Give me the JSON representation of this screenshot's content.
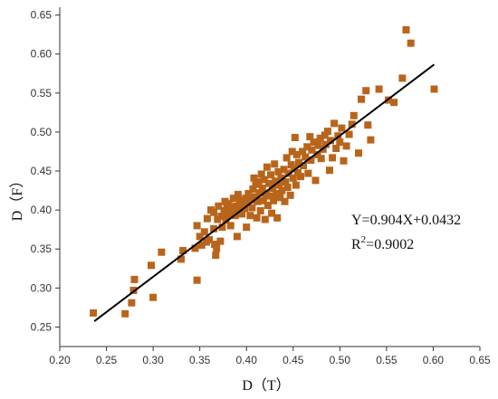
{
  "chart_data": {
    "type": "scatter",
    "xlabel": "D（T）",
    "ylabel": "D（F）",
    "xlim": [
      0.2,
      0.65
    ],
    "ylim": [
      0.225,
      0.66
    ],
    "x_ticks": [
      "0.20",
      "0.25",
      "0.30",
      "0.35",
      "0.40",
      "0.45",
      "0.50",
      "0.55",
      "0.60",
      "0.65"
    ],
    "y_ticks": [
      "0.25",
      "0.30",
      "0.35",
      "0.40",
      "0.45",
      "0.50",
      "0.55",
      "0.60",
      "0.65"
    ],
    "grid": false,
    "marker_color": "#B8651B",
    "line_color": "#000000",
    "annotations": {
      "equation": "Y=0.904X+0.0432",
      "r2_prefix": "R",
      "r2_exp": "2",
      "r2_value": "=0.9002"
    },
    "fit_line": {
      "slope": 0.904,
      "intercept": 0.0432,
      "x_range": [
        0.237,
        0.601
      ]
    },
    "points": [
      [
        0.236,
        0.268
      ],
      [
        0.27,
        0.267
      ],
      [
        0.277,
        0.281
      ],
      [
        0.279,
        0.297
      ],
      [
        0.28,
        0.311
      ],
      [
        0.298,
        0.329
      ],
      [
        0.3,
        0.288
      ],
      [
        0.309,
        0.346
      ],
      [
        0.33,
        0.337
      ],
      [
        0.332,
        0.348
      ],
      [
        0.345,
        0.351
      ],
      [
        0.347,
        0.31
      ],
      [
        0.347,
        0.38
      ],
      [
        0.35,
        0.366
      ],
      [
        0.352,
        0.355
      ],
      [
        0.355,
        0.372
      ],
      [
        0.357,
        0.359
      ],
      [
        0.358,
        0.389
      ],
      [
        0.36,
        0.362
      ],
      [
        0.362,
        0.4
      ],
      [
        0.365,
        0.376
      ],
      [
        0.365,
        0.397
      ],
      [
        0.366,
        0.356
      ],
      [
        0.367,
        0.342
      ],
      [
        0.368,
        0.351
      ],
      [
        0.369,
        0.388
      ],
      [
        0.37,
        0.405
      ],
      [
        0.372,
        0.36
      ],
      [
        0.373,
        0.392
      ],
      [
        0.374,
        0.378
      ],
      [
        0.376,
        0.399
      ],
      [
        0.377,
        0.411
      ],
      [
        0.378,
        0.387
      ],
      [
        0.379,
        0.402
      ],
      [
        0.38,
        0.395
      ],
      [
        0.381,
        0.408
      ],
      [
        0.383,
        0.38
      ],
      [
        0.384,
        0.403
      ],
      [
        0.385,
        0.396
      ],
      [
        0.386,
        0.415
      ],
      [
        0.388,
        0.393
      ],
      [
        0.389,
        0.405
      ],
      [
        0.39,
        0.366
      ],
      [
        0.391,
        0.42
      ],
      [
        0.392,
        0.4
      ],
      [
        0.393,
        0.412
      ],
      [
        0.395,
        0.395
      ],
      [
        0.396,
        0.407
      ],
      [
        0.398,
        0.402
      ],
      [
        0.399,
        0.415
      ],
      [
        0.4,
        0.378
      ],
      [
        0.401,
        0.409
      ],
      [
        0.402,
        0.421
      ],
      [
        0.404,
        0.393
      ],
      [
        0.405,
        0.413
      ],
      [
        0.406,
        0.403
      ],
      [
        0.407,
        0.427
      ],
      [
        0.408,
        0.441
      ],
      [
        0.409,
        0.417
      ],
      [
        0.41,
        0.433
      ],
      [
        0.411,
        0.39
      ],
      [
        0.412,
        0.411
      ],
      [
        0.413,
        0.436
      ],
      [
        0.414,
        0.422
      ],
      [
        0.415,
        0.399
      ],
      [
        0.416,
        0.446
      ],
      [
        0.417,
        0.428
      ],
      [
        0.418,
        0.412
      ],
      [
        0.419,
        0.439
      ],
      [
        0.42,
        0.388
      ],
      [
        0.421,
        0.421
      ],
      [
        0.422,
        0.455
      ],
      [
        0.423,
        0.406
      ],
      [
        0.424,
        0.434
      ],
      [
        0.425,
        0.418
      ],
      [
        0.426,
        0.445
      ],
      [
        0.427,
        0.396
      ],
      [
        0.428,
        0.428
      ],
      [
        0.429,
        0.412
      ],
      [
        0.43,
        0.459
      ],
      [
        0.431,
        0.437
      ],
      [
        0.432,
        0.421
      ],
      [
        0.433,
        0.39
      ],
      [
        0.434,
        0.449
      ],
      [
        0.435,
        0.432
      ],
      [
        0.436,
        0.416
      ],
      [
        0.437,
        0.441
      ],
      [
        0.438,
        0.425
      ],
      [
        0.44,
        0.452
      ],
      [
        0.441,
        0.411
      ],
      [
        0.442,
        0.436
      ],
      [
        0.443,
        0.467
      ],
      [
        0.444,
        0.429
      ],
      [
        0.445,
        0.447
      ],
      [
        0.447,
        0.419
      ],
      [
        0.448,
        0.458
      ],
      [
        0.449,
        0.475
      ],
      [
        0.45,
        0.441
      ],
      [
        0.451,
        0.453
      ],
      [
        0.452,
        0.493
      ],
      [
        0.453,
        0.432
      ],
      [
        0.454,
        0.471
      ],
      [
        0.455,
        0.448
      ],
      [
        0.456,
        0.461
      ],
      [
        0.458,
        0.443
      ],
      [
        0.46,
        0.475
      ],
      [
        0.461,
        0.457
      ],
      [
        0.463,
        0.468
      ],
      [
        0.465,
        0.481
      ],
      [
        0.466,
        0.447
      ],
      [
        0.468,
        0.494
      ],
      [
        0.469,
        0.464
      ],
      [
        0.47,
        0.477
      ],
      [
        0.472,
        0.487
      ],
      [
        0.474,
        0.438
      ],
      [
        0.476,
        0.471
      ],
      [
        0.477,
        0.483
      ],
      [
        0.479,
        0.492
      ],
      [
        0.48,
        0.466
      ],
      [
        0.482,
        0.478
      ],
      [
        0.484,
        0.496
      ],
      [
        0.485,
        0.484
      ],
      [
        0.487,
        0.501
      ],
      [
        0.489,
        0.451
      ],
      [
        0.49,
        0.489
      ],
      [
        0.492,
        0.467
      ],
      [
        0.494,
        0.511
      ],
      [
        0.496,
        0.479
      ],
      [
        0.498,
        0.495
      ],
      [
        0.5,
        0.487
      ],
      [
        0.502,
        0.505
      ],
      [
        0.504,
        0.463
      ],
      [
        0.507,
        0.482
      ],
      [
        0.51,
        0.497
      ],
      [
        0.513,
        0.51
      ],
      [
        0.515,
        0.521
      ],
      [
        0.52,
        0.473
      ],
      [
        0.523,
        0.542
      ],
      [
        0.528,
        0.553
      ],
      [
        0.53,
        0.509
      ],
      [
        0.533,
        0.49
      ],
      [
        0.542,
        0.555
      ],
      [
        0.552,
        0.541
      ],
      [
        0.558,
        0.538
      ],
      [
        0.567,
        0.569
      ],
      [
        0.571,
        0.631
      ],
      [
        0.576,
        0.614
      ],
      [
        0.601,
        0.555
      ]
    ]
  }
}
